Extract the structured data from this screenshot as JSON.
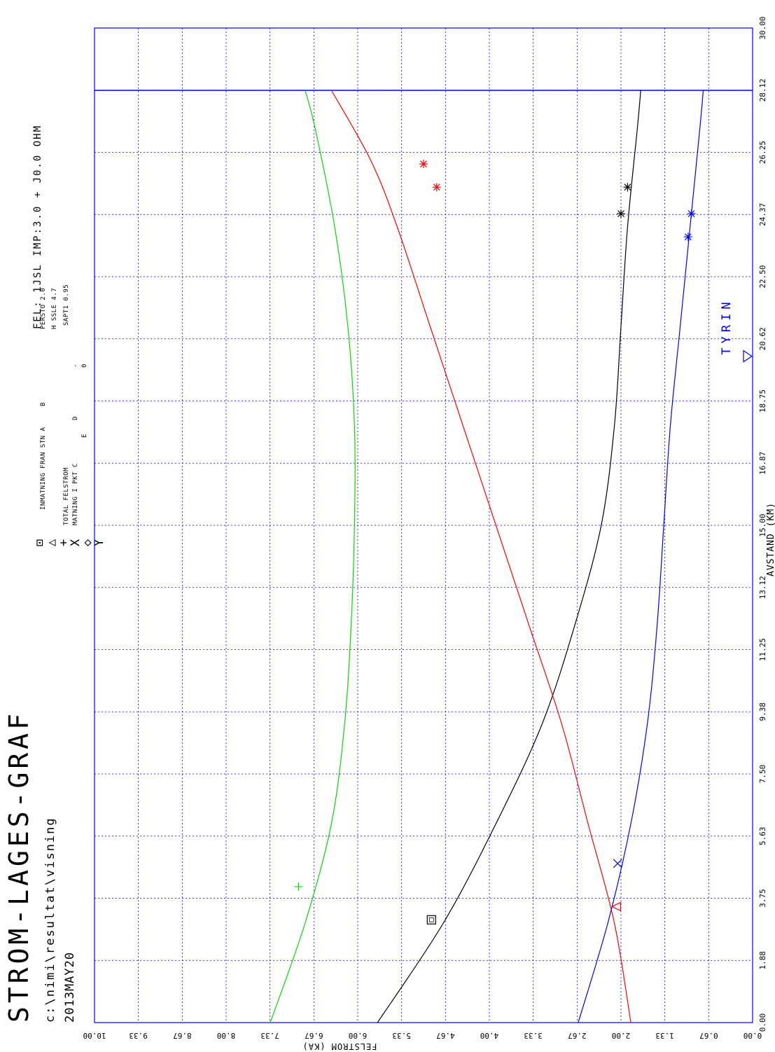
{
  "header": {
    "title": "STROM-LAGES-GRAF",
    "path": "c:\\nimi\\resultat\\visning",
    "date": "2013MAY20",
    "fault_info": "FEL: 1JSL IMP:3.0 + J0.0 OHM"
  },
  "legend": {
    "symbols": [
      "⊡",
      "△",
      "+",
      "X",
      "◇",
      "Y"
    ],
    "entries": [
      {
        "text": "INMATNING FRAN STN A",
        "symbol": "square"
      },
      {
        "text": "B",
        "symbol": "triangle"
      },
      {
        "text": "TOTAL FELSTROM",
        "symbol": "plus"
      },
      {
        "text": "MATNING I PKT C",
        "symbol": "x"
      },
      {
        "text": "D",
        "symbol": "diamond"
      },
      {
        "text": "E",
        "symbol": "y"
      }
    ],
    "params": [
      {
        "text": "PERSTO 2.0"
      },
      {
        "text": "H SSLE 4.7"
      },
      {
        "text": "SAPT1  0.95"
      },
      {
        "text": "-"
      },
      {
        "text": "0"
      }
    ]
  },
  "station_label": "TYRIN",
  "chart_data": {
    "type": "line",
    "xlabel": "AVSTAND (KM)",
    "ylabel": "FELSTROM (KA)",
    "xlim": [
      0,
      30
    ],
    "ylim": [
      0,
      10
    ],
    "x_ticks": [
      "0.00",
      "1.88",
      "3.75",
      "5.63",
      "7.50",
      "9.38",
      "11.25",
      "13.12",
      "15.00",
      "16.87",
      "18.75",
      "20.62",
      "22.50",
      "24.37",
      "26.25",
      "28.12",
      "30.00"
    ],
    "y_ticks": [
      "0.00",
      "0.67",
      "1.33",
      "2.00",
      "2.67",
      "3.33",
      "4.00",
      "4.67",
      "5.33",
      "6.00",
      "6.67",
      "7.33",
      "8.00",
      "8.67",
      "9.33",
      "10.00"
    ],
    "grid": true,
    "end_marker_km": 28.12,
    "station_marker_km": 20.1,
    "series": [
      {
        "name": "INMATNING FRAN STN A",
        "color": "#000000",
        "x": [
          0,
          3,
          6,
          9,
          12,
          15,
          18,
          21,
          24,
          27,
          28.12
        ],
        "y": [
          5.7,
          4.7,
          3.9,
          3.2,
          2.7,
          2.3,
          2.1,
          2.0,
          1.9,
          1.75,
          1.7
        ]
      },
      {
        "name": "B",
        "color": "#ff0000",
        "x": [
          0,
          3,
          6,
          9,
          12,
          15,
          18,
          21,
          24,
          26,
          28.12
        ],
        "y": [
          1.85,
          2.1,
          2.5,
          2.9,
          3.4,
          3.9,
          4.4,
          4.9,
          5.4,
          5.8,
          6.4
        ]
      },
      {
        "name": "TOTAL FELSTROM",
        "color": "#00dd00",
        "x": [
          0,
          3,
          6,
          9,
          12,
          15,
          18,
          21,
          24,
          27,
          28.12
        ],
        "y": [
          7.33,
          6.8,
          6.4,
          6.2,
          6.1,
          6.05,
          6.05,
          6.15,
          6.35,
          6.65,
          6.8
        ]
      },
      {
        "name": "MATNING I PKT C",
        "color": "#0000ff",
        "x": [
          0,
          3,
          6,
          9,
          12,
          15,
          18,
          21,
          24,
          27,
          28.12
        ],
        "y": [
          2.65,
          2.2,
          1.85,
          1.6,
          1.45,
          1.35,
          1.25,
          1.1,
          0.95,
          0.8,
          0.75
        ]
      }
    ],
    "markers": [
      {
        "symbol": "square",
        "color": "#000000",
        "x": 3.1,
        "y": 4.88
      },
      {
        "symbol": "triangle",
        "color": "#ff0000",
        "x": 3.5,
        "y": 2.07
      },
      {
        "symbol": "plus",
        "color": "#00dd00",
        "x": 4.1,
        "y": 6.9
      },
      {
        "symbol": "x",
        "color": "#0000ff",
        "x": 4.8,
        "y": 2.05
      },
      {
        "symbol": "star",
        "color": "#ff0000",
        "x": 25.9,
        "y": 5.0
      },
      {
        "symbol": "star",
        "color": "#ff0000",
        "x": 25.2,
        "y": 4.8
      },
      {
        "symbol": "star",
        "color": "#000000",
        "x": 24.4,
        "y": 2.0
      },
      {
        "symbol": "star",
        "color": "#000000",
        "x": 25.2,
        "y": 1.9
      },
      {
        "symbol": "star",
        "color": "#0000ff",
        "x": 24.4,
        "y": 0.93
      },
      {
        "symbol": "star",
        "color": "#0000ff",
        "x": 23.7,
        "y": 0.98
      }
    ]
  }
}
